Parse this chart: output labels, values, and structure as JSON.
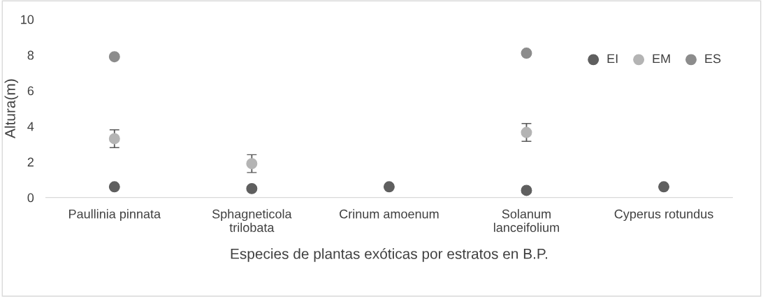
{
  "chart_data": {
    "type": "scatter",
    "xlabel": "Especies de plantas exóticas por estratos en B.P.",
    "ylabel": "Altura(m)",
    "categories": [
      "Paullinia pinnata",
      "Sphagneticola\ntrilobata",
      "Crinum amoenum",
      "Solanum\nlanceifolium",
      "Cyperus rotundus"
    ],
    "ylim": [
      0,
      10
    ],
    "yticks": [
      0,
      2,
      4,
      6,
      8,
      10
    ],
    "grid": false,
    "legend": "top right",
    "marker": "circle",
    "series": [
      {
        "name": "EI",
        "color": "#5f5f5f",
        "values": [
          0.6,
          0.5,
          0.6,
          0.4,
          0.6
        ]
      },
      {
        "name": "EM",
        "color": "#b4b4b4",
        "values": [
          3.3,
          1.9,
          null,
          3.65,
          null
        ],
        "errors": [
          0.5,
          0.5,
          null,
          0.5,
          null
        ]
      },
      {
        "name": "ES",
        "color": "#8c8c8c",
        "values": [
          7.9,
          null,
          null,
          8.1,
          null
        ]
      }
    ]
  }
}
